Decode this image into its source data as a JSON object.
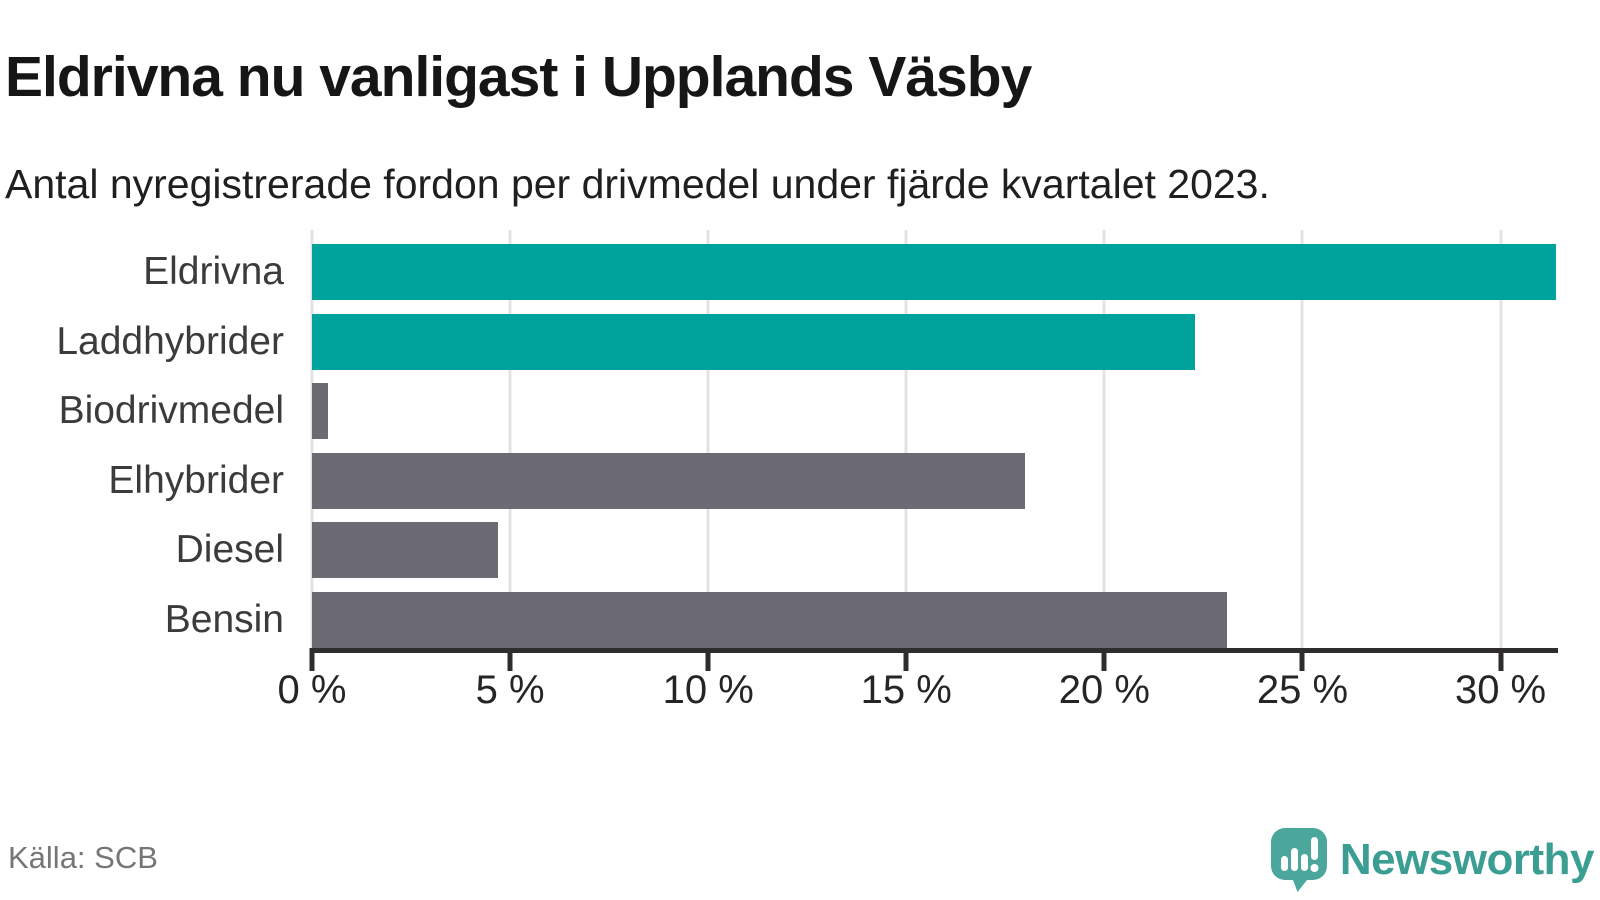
{
  "header": {
    "title": "Eldrivna nu vanligast i Upplands Väsby",
    "subtitle": "Antal nyregistrerade fordon per drivmedel under fjärde kvartalet 2023."
  },
  "chart_data": {
    "type": "bar",
    "orientation": "horizontal",
    "title": "Eldrivna nu vanligast i Upplands Väsby",
    "subtitle": "Antal nyregistrerade fordon per drivmedel under fjärde kvartalet 2023.",
    "categories": [
      "Eldrivna",
      "Laddhybrider",
      "Biodrivmedel",
      "Elhybrider",
      "Diesel",
      "Bensin"
    ],
    "values": [
      31.4,
      22.3,
      0.4,
      18.0,
      4.7,
      23.1
    ],
    "unit": "%",
    "bar_colors": [
      "#00A39B",
      "#00A39B",
      "#6C6A72",
      "#6C6A72",
      "#6C6A72",
      "#6C6A72"
    ],
    "highlight_color": "#00A39B",
    "default_color": "#6C6A72",
    "xlim": [
      0,
      31.4
    ],
    "x_ticks": [
      0,
      5,
      10,
      15,
      20,
      25,
      30
    ],
    "x_tick_labels": [
      "0 %",
      "5 %",
      "10 %",
      "15 %",
      "20 %",
      "25 %",
      "30 %"
    ],
    "grid": "vertical-gridlines-on",
    "gridline_color": "#E3E3E3",
    "axis_color": "#2E2D2C",
    "legend": "none",
    "xlabel": "",
    "ylabel": ""
  },
  "footer": {
    "source": "Källa: SCB",
    "brand_name": "Newsworthy",
    "brand_color": "#3B9E93",
    "logo_icon": "newsworthy-speech-bubble-bar-chart-icon",
    "logo_bubble_color": "#4BA79C"
  }
}
